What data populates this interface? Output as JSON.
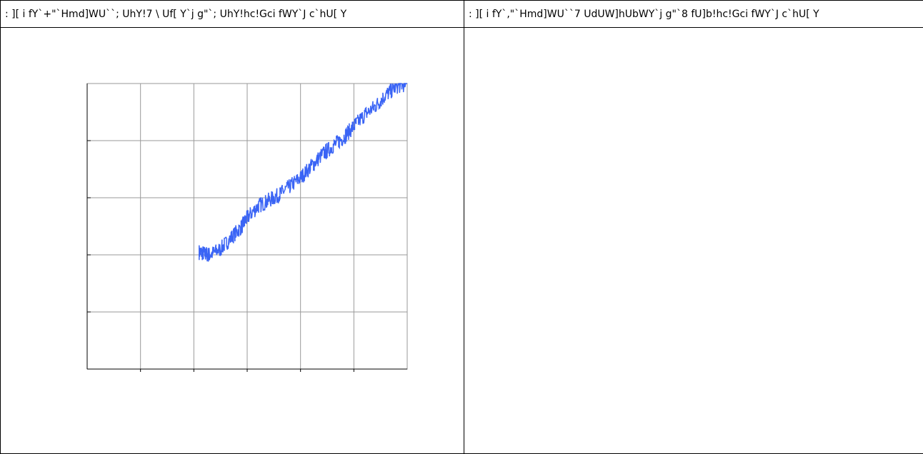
{
  "table": {
    "headers": [
      ": ][ i fY`+\"`Hmd]WU``; UhY!7 \\ Uf[ Y`j g\"`; UhY!hc!Gci fWY`J c`hU[ Y",
      ": ][ i fY`,\"`Hmd]WU``7 UdUW]hUbWY`j g\"`8 fU]b!hc!Gci fWY`J c`hU[ Y"
    ]
  },
  "colors": {
    "line": "#3a64f5",
    "grid": "#999999",
    "axis": "#000000"
  },
  "chart_data": [
    {
      "type": "line",
      "title": "",
      "xlabel": "",
      "ylabel": "",
      "xlim": [
        0,
        6
      ],
      "ylim": [
        0,
        5
      ],
      "x_gridlines": [
        1,
        2,
        3,
        4,
        5
      ],
      "y_gridlines": [
        1,
        2,
        3,
        4
      ],
      "grid": true,
      "series": [
        {
          "x": [
            2.1,
            2.2,
            2.3,
            2.5,
            2.7,
            2.9,
            3.0,
            3.2,
            3.4,
            3.6,
            3.8,
            4.0,
            4.2,
            4.4,
            4.6,
            4.8,
            5.0,
            5.2,
            5.4,
            5.6,
            5.8,
            6.0
          ],
          "y": [
            2.05,
            2.02,
            2.0,
            2.1,
            2.3,
            2.5,
            2.65,
            2.85,
            2.95,
            3.05,
            3.2,
            3.35,
            3.55,
            3.75,
            3.9,
            4.05,
            4.25,
            4.45,
            4.6,
            4.8,
            4.95,
            5.0
          ]
        }
      ]
    },
    {
      "type": "line",
      "title": "",
      "xlabel": "",
      "ylabel": "",
      "series": []
    }
  ]
}
